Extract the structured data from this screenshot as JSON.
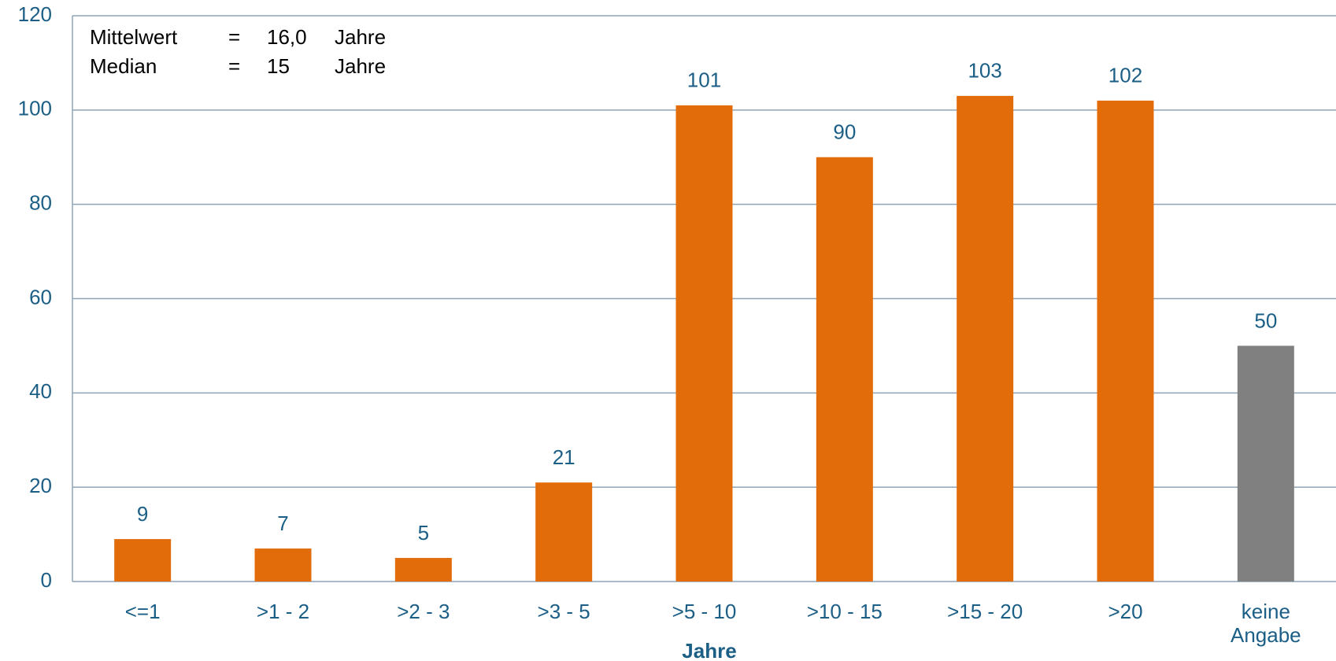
{
  "chart_data": {
    "type": "bar",
    "categories": [
      "<=1",
      ">1 - 2",
      ">2 - 3",
      ">3 - 5",
      ">5 - 10",
      ">10 - 15",
      ">15 - 20",
      ">20",
      "keine Angabe"
    ],
    "values": [
      9,
      7,
      5,
      21,
      101,
      90,
      103,
      102,
      50
    ],
    "colors": [
      "#e36c0a",
      "#e36c0a",
      "#e36c0a",
      "#e36c0a",
      "#e36c0a",
      "#e36c0a",
      "#e36c0a",
      "#e36c0a",
      "#808080"
    ],
    "ylim": [
      0,
      120
    ],
    "yticks": [
      0,
      20,
      40,
      60,
      80,
      100,
      120
    ],
    "grid": true,
    "x_label": "Jahre",
    "annotation": [
      [
        "Mittelwert",
        "=",
        "16,0",
        "Jahre"
      ],
      [
        "Median",
        "=",
        "15",
        "Jahre"
      ]
    ]
  }
}
